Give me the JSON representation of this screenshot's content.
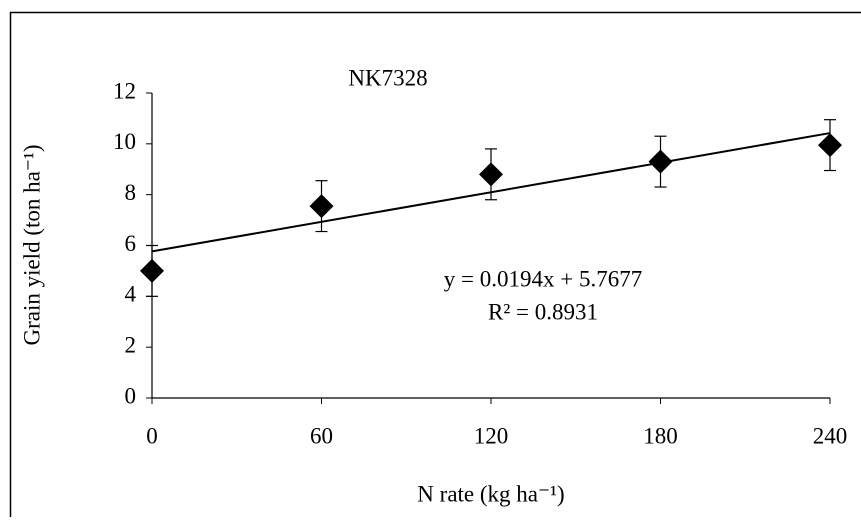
{
  "chart_data": {
    "type": "scatter",
    "title": "NK7328",
    "x_label": "N rate (kg ha⁻¹)",
    "y_label": "Grain yield (ton ha⁻¹)",
    "x": [
      0,
      60,
      120,
      180,
      240
    ],
    "series": [
      {
        "name": "NK7328",
        "color": "#000000",
        "values": [
          5.0,
          7.55,
          8.8,
          9.3,
          9.95
        ],
        "errors": [
          1,
          1,
          1,
          1,
          1
        ]
      }
    ],
    "trendline": {
      "slope": 0.0194,
      "intercept": 5.7677,
      "equation": "y = 0.0194x  + 5.7677",
      "r2_label": "R² = 0.8931"
    },
    "xlim": [
      0,
      240
    ],
    "xticks": [
      0,
      60,
      120,
      180,
      240
    ],
    "ylim": [
      0,
      12
    ],
    "yticks": [
      0,
      2,
      4,
      6,
      8,
      10,
      12
    ],
    "grid": false
  }
}
